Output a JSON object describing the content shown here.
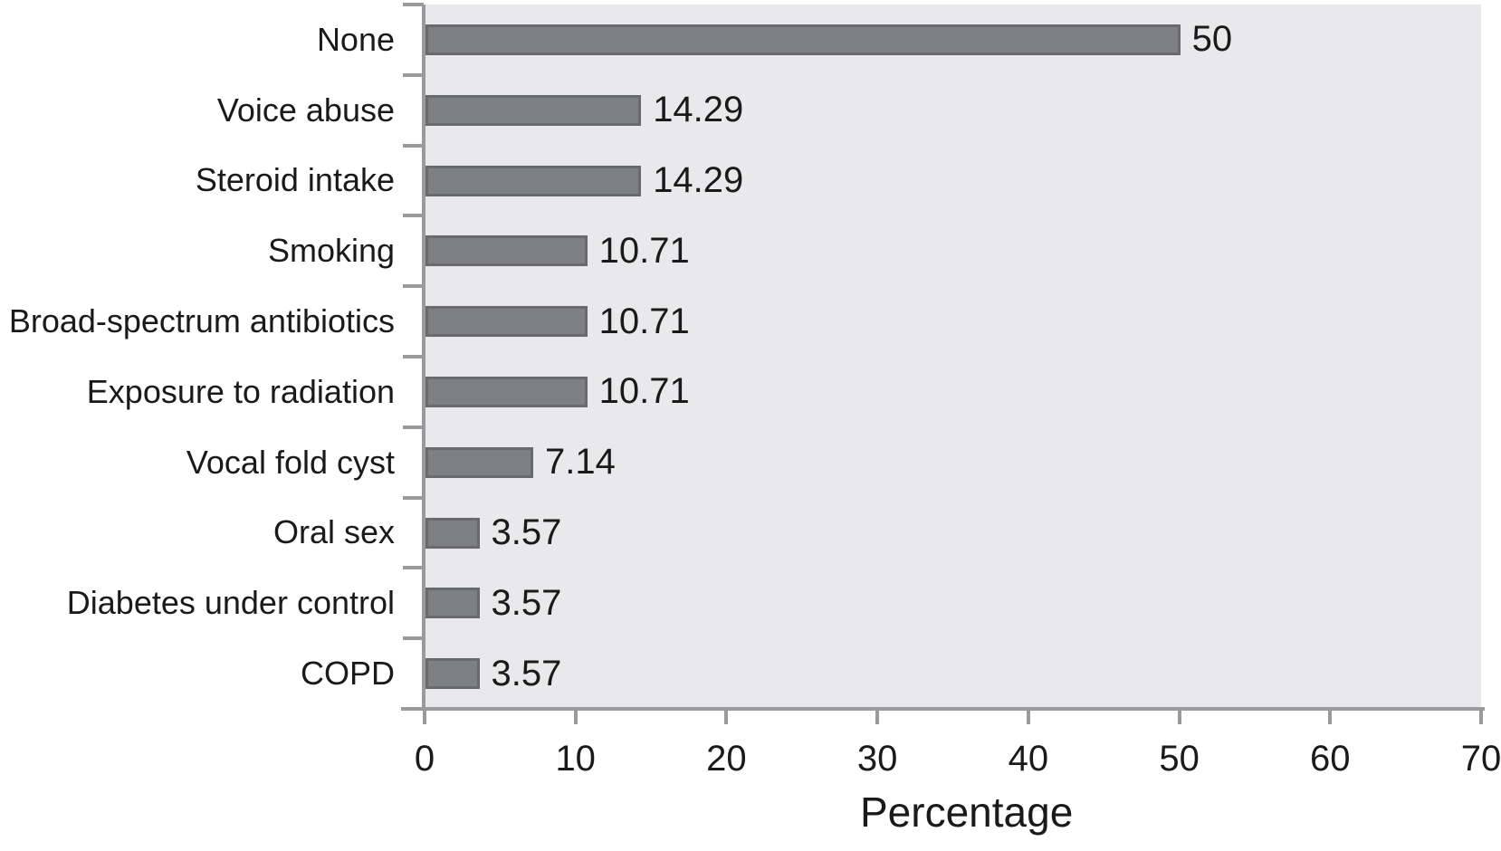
{
  "chart_data": {
    "type": "bar",
    "orientation": "horizontal",
    "title": "",
    "xlabel": "Percentage",
    "ylabel": "",
    "xlim": [
      0,
      70
    ],
    "x_ticks": [
      0,
      10,
      20,
      30,
      40,
      50,
      60,
      70
    ],
    "grid": false,
    "legend": false,
    "categories": [
      "None",
      "Voice abuse",
      "Steroid intake",
      "Smoking",
      "Broad-spectrum antibiotics",
      "Exposure to radiation",
      "Vocal fold cyst",
      "Oral sex",
      "Diabetes under control",
      "COPD"
    ],
    "values": [
      50,
      14.29,
      14.29,
      10.71,
      10.71,
      10.71,
      7.14,
      3.57,
      3.57,
      3.57
    ],
    "value_labels": [
      "50",
      "14.29",
      "14.29",
      "10.71",
      "10.71",
      "10.71",
      "7.14",
      "3.57",
      "3.57",
      "3.57"
    ],
    "colors": {
      "bar_fill": "#7f8084",
      "bar_border": "#696a6e",
      "plot_background": "#e9e9eb",
      "page_background": "#ffffff",
      "axis_line": "#9a9a9c",
      "text": "#1a1a1a"
    }
  }
}
